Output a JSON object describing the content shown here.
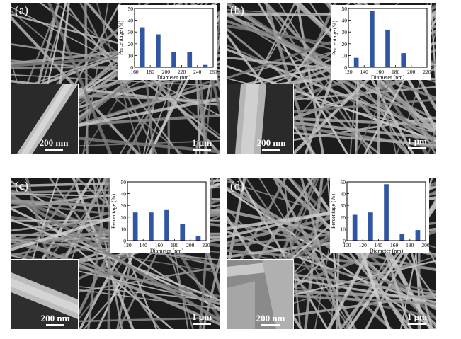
{
  "panels": [
    {
      "label": "(a)",
      "inset_scale": "200 nm",
      "main_scale": "1 μm"
    },
    {
      "label": "(b)",
      "inset_scale": "200 nm",
      "main_scale": "1 μm"
    },
    {
      "label": "(c)",
      "inset_scale": "200 nm",
      "main_scale": "1 μm"
    },
    {
      "label": "(d)",
      "inset_scale": "200 nm",
      "main_scale": "1 μm"
    }
  ],
  "chart_data": [
    {
      "type": "bar",
      "title": "",
      "xlabel": "Diameter (nm)",
      "ylabel": "Percentage (%)",
      "x_ticks": [
        160,
        180,
        200,
        220,
        240,
        260
      ],
      "y_ticks": [
        0,
        10,
        20,
        30,
        40,
        50
      ],
      "xlim": [
        160,
        260
      ],
      "ylim": [
        0,
        50
      ],
      "bar_width": 10,
      "bar_color": "#2f55a4",
      "x": [
        170,
        190,
        210,
        230,
        250
      ],
      "values": [
        34,
        28,
        13,
        13,
        2
      ]
    },
    {
      "type": "bar",
      "title": "",
      "xlabel": "Diameter (nm)",
      "ylabel": "Percentage (%)",
      "x_ticks": [
        120,
        140,
        160,
        180,
        200,
        220
      ],
      "y_ticks": [
        0,
        10,
        20,
        30,
        40,
        50
      ],
      "xlim": [
        120,
        220
      ],
      "ylim": [
        0,
        50
      ],
      "bar_width": 10,
      "bar_color": "#2f55a4",
      "x": [
        130,
        150,
        170,
        190
      ],
      "values": [
        8,
        48,
        32,
        12
      ]
    },
    {
      "type": "bar",
      "title": "",
      "xlabel": "Diameter (nm)",
      "ylabel": "Percentage (%)",
      "x_ticks": [
        120,
        140,
        160,
        180,
        200,
        220
      ],
      "y_ticks": [
        0,
        10,
        20,
        30,
        40,
        50
      ],
      "xlim": [
        120,
        220
      ],
      "ylim": [
        0,
        50
      ],
      "bar_width": 10,
      "bar_color": "#2f55a4",
      "x": [
        130,
        150,
        170,
        190,
        210
      ],
      "values": [
        24,
        24,
        26,
        14,
        4
      ]
    },
    {
      "type": "bar",
      "title": "",
      "xlabel": "Diameter (nm)",
      "ylabel": "Percentage (%)",
      "x_ticks": [
        100,
        120,
        140,
        160,
        180,
        200
      ],
      "y_ticks": [
        0,
        10,
        20,
        30,
        40,
        50
      ],
      "xlim": [
        100,
        200
      ],
      "ylim": [
        0,
        50
      ],
      "bar_width": 10,
      "bar_color": "#2f55a4",
      "x": [
        110,
        130,
        150,
        170,
        190
      ],
      "values": [
        22,
        24,
        48,
        6,
        9
      ]
    }
  ]
}
